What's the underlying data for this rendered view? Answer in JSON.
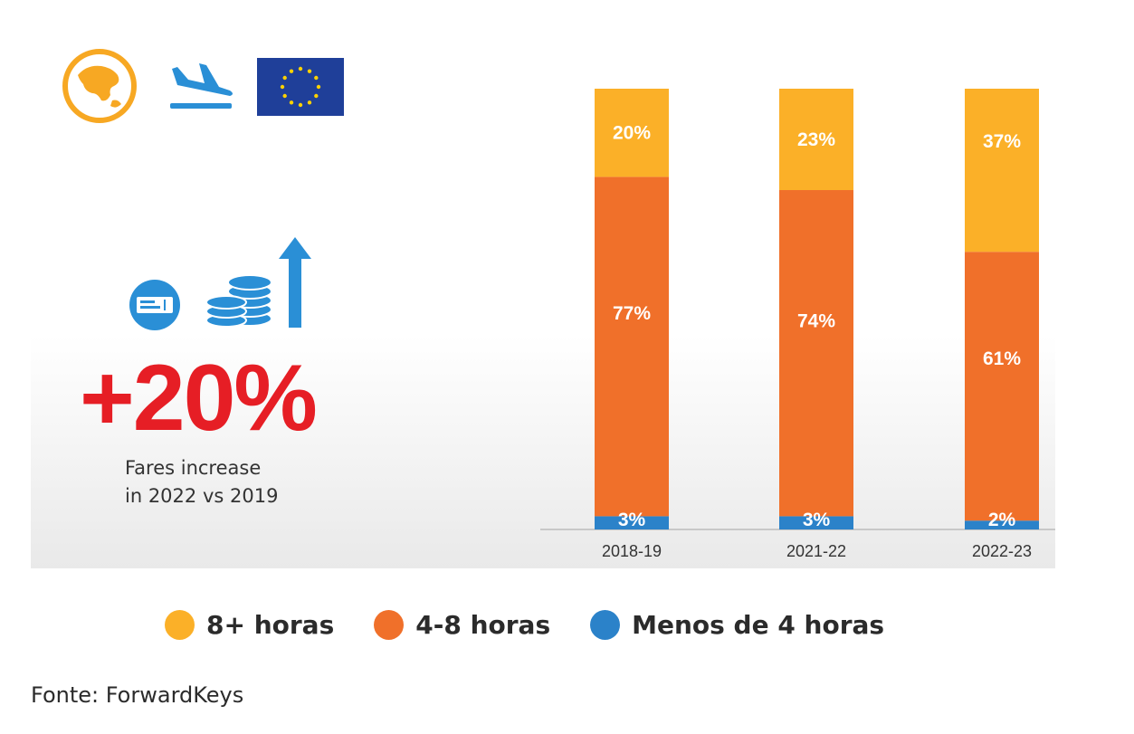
{
  "colors": {
    "long_haul": "#fbb028",
    "medium_haul": "#f0702a",
    "short_haul": "#2b82c9",
    "stat_red": "#e61e25",
    "icon_orange": "#f7a823",
    "icon_blue": "#2a8fd6",
    "eu_blue": "#1f3f99",
    "eu_star": "#ffd200"
  },
  "icons": {
    "globe": "globe-asia-icon",
    "plane": "airplane-landing-icon",
    "flag": "eu-flag-icon",
    "ticket": "ticket-icon",
    "coins": "coin-stack-icon",
    "arrow": "arrow-up-icon"
  },
  "highlight": {
    "stat": "+20%",
    "caption_line1": "Fares increase",
    "caption_line2": "in 2022 vs 2019"
  },
  "chart_data": {
    "type": "bar",
    "stacked": true,
    "percent": true,
    "categories": [
      "2018-19",
      "2021-22",
      "2022-23"
    ],
    "series": [
      {
        "name": "Menos de 4 horas",
        "color": "#2b82c9",
        "values": [
          3,
          3,
          2
        ],
        "labels": [
          "3%",
          "3%",
          "2%"
        ]
      },
      {
        "name": "4-8 horas",
        "color": "#f0702a",
        "values": [
          77,
          74,
          61
        ],
        "labels": [
          "77%",
          "74%",
          "61%"
        ]
      },
      {
        "name": "8+ horas",
        "color": "#fbb028",
        "values": [
          20,
          23,
          37
        ],
        "labels": [
          "20%",
          "23%",
          "37%"
        ]
      }
    ],
    "ylim": [
      0,
      100
    ],
    "grid": false,
    "legend": "bottom"
  },
  "legend": {
    "items": [
      {
        "label": "8+ horas",
        "color": "#fbb028"
      },
      {
        "label": "4-8 horas",
        "color": "#f0702a"
      },
      {
        "label": "Menos de 4 horas",
        "color": "#2b82c9"
      }
    ]
  },
  "source": "Fonte: ForwardKeys"
}
